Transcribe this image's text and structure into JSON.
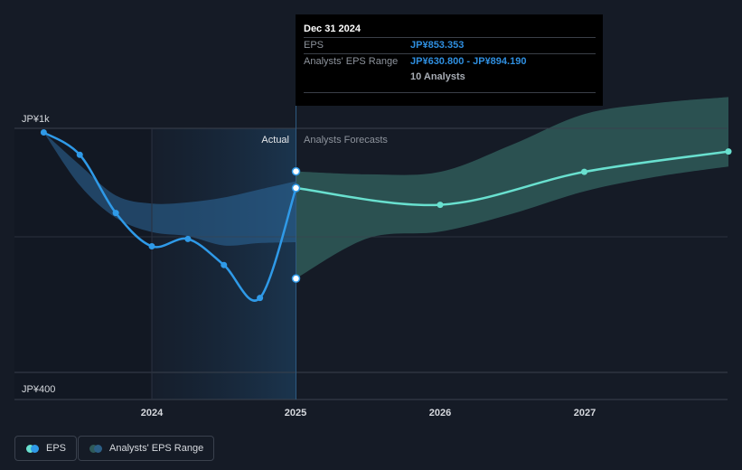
{
  "chart_data": {
    "type": "line",
    "currency_unit": "JP¥",
    "y_axis": {
      "min": 400,
      "max": 1000,
      "tick_labels": [
        "JP¥1k",
        "JP¥400"
      ]
    },
    "x_axis": {
      "tick_labels": [
        "2024",
        "2025",
        "2026",
        "2027"
      ]
    },
    "region_labels": {
      "actual": "Actual",
      "forecast": "Analysts Forecasts"
    },
    "series": [
      {
        "name": "EPS",
        "kind": "actual",
        "color": "#2f9ae8",
        "points": [
          {
            "x": 2023.25,
            "y": 990
          },
          {
            "x": 2023.5,
            "y": 935
          },
          {
            "x": 2023.75,
            "y": 792
          },
          {
            "x": 2024.0,
            "y": 710
          },
          {
            "x": 2024.25,
            "y": 728
          },
          {
            "x": 2024.5,
            "y": 664
          },
          {
            "x": 2024.75,
            "y": 583
          },
          {
            "x": 2025.0,
            "y": 853.353
          }
        ]
      },
      {
        "name": "EPS",
        "kind": "forecast",
        "color": "#69e0cf",
        "points": [
          {
            "x": 2025.0,
            "y": 853.353
          },
          {
            "x": 2026.0,
            "y": 812
          },
          {
            "x": 2027.0,
            "y": 893
          },
          {
            "x": 2028.0,
            "y": 943
          }
        ]
      },
      {
        "name": "Analysts' EPS Range",
        "kind": "range",
        "color": "#2c5266",
        "x": [
          2025.0,
          2025.5,
          2026.0,
          2026.5,
          2027.0,
          2027.5,
          2028.0
        ],
        "high": [
          894.19,
          887,
          893,
          960,
          1035,
          1062,
          1077
        ],
        "low": [
          630.8,
          730,
          746,
          790,
          845,
          881,
          906
        ]
      }
    ],
    "past_range": {
      "x": [
        2023.25,
        2023.5,
        2023.75,
        2024.0,
        2024.25,
        2024.5,
        2024.75,
        2025.0
      ],
      "high": [
        990,
        910,
        835,
        815,
        818,
        830,
        850,
        870
      ],
      "low": [
        990,
        860,
        780,
        745,
        735,
        712,
        718,
        720
      ]
    },
    "tooltip": {
      "date": "Dec 31 2024",
      "eps_label": "EPS",
      "eps_value": "JP¥853.353",
      "range_label": "Analysts' EPS Range",
      "range_value": "JP¥630.800 - JP¥894.190",
      "analysts": "10 Analysts"
    },
    "legend": [
      {
        "label": "EPS",
        "colors": [
          "#2f9ae8",
          "#69e0cf"
        ]
      },
      {
        "label": "Analysts' EPS Range",
        "colors": [
          "#2c5f86",
          "#2f5a59"
        ]
      }
    ]
  }
}
